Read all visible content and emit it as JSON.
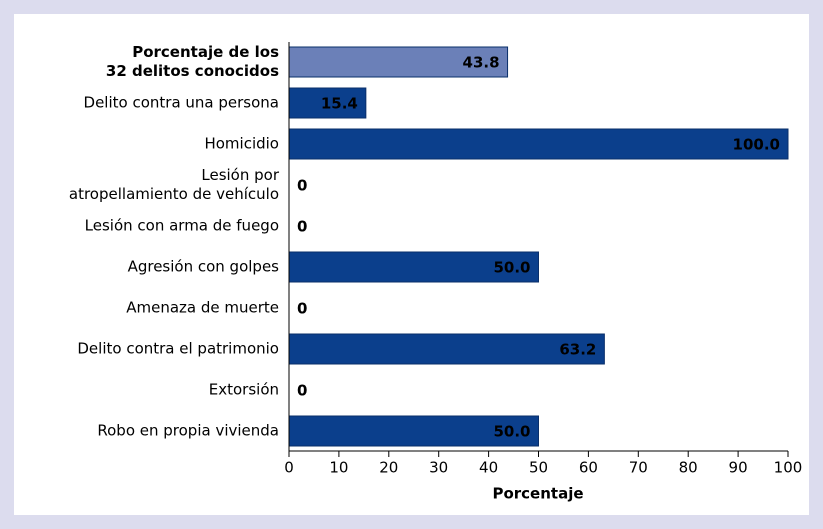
{
  "chart_data": {
    "type": "barh",
    "categories": [
      [
        "Porcentaje de los",
        "32 delitos conocidos"
      ],
      "Delito contra una persona",
      "Homicidio",
      [
        "Lesión por",
        "atropellamiento de vehículo"
      ],
      "Lesión con arma de fuego",
      "Agresión con golpes",
      "Amenaza de muerte",
      "Delito contra el patrimonio",
      "Extorsión",
      "Robo en propia vivienda"
    ],
    "values": [
      43.8,
      15.4,
      100,
      0,
      0,
      50,
      0,
      63.2,
      0,
      50
    ],
    "value_labels": [
      "43.8",
      "15.4",
      "100.0",
      "0",
      "0",
      "50.0",
      "0",
      "63.2",
      "0",
      "50.0"
    ],
    "colors": [
      "#6b80b8",
      "#0b3f8c",
      "#0b3f8c",
      "#0b3f8c",
      "#0b3f8c",
      "#0b3f8c",
      "#0b3f8c",
      "#0b3f8c",
      "#0b3f8c",
      "#0b3f8c"
    ],
    "xlabel": "Porcentaje",
    "xlim": [
      0,
      100
    ],
    "xticks": [
      0,
      10,
      20,
      30,
      40,
      50,
      60,
      70,
      80,
      90,
      100
    ]
  }
}
